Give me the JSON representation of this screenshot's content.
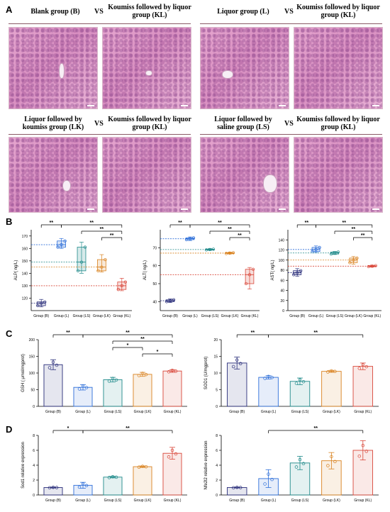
{
  "panels": {
    "a": "A",
    "b": "B",
    "c": "C",
    "d": "D"
  },
  "histology": {
    "vs": "VS",
    "rows": [
      [
        "Blank group (B)",
        "Koumiss followed by liquor group (KL)",
        "Liquor group (L)",
        "Koumiss followed by liquor group (KL)"
      ],
      [
        "Liquor followed by koumiss group (LK)",
        "Koumiss followed by liquor group (KL)",
        "Liquor followed by saline group (LS)",
        "Koumiss followed by liquor group (KL)"
      ]
    ]
  },
  "group_colors": [
    "#2a2e7a",
    "#2e6fd9",
    "#1f8a8a",
    "#d9821f",
    "#d9473a"
  ],
  "chart_data": [
    {
      "id": "alp",
      "type": "box",
      "ylabel": "ALP( ng/L)",
      "categories": [
        "Group (B)",
        "Group (L)",
        "Group (LS)",
        "Group (LK)",
        "Group (KL)"
      ],
      "ylim": [
        110,
        175
      ],
      "ticks": [
        120,
        130,
        140,
        150,
        160,
        170
      ],
      "boxes": [
        [
          113,
          114,
          116,
          117,
          119
        ],
        [
          160,
          161,
          163,
          166,
          168
        ],
        [
          140,
          142,
          149,
          161,
          165
        ],
        [
          141,
          142,
          145,
          151,
          155
        ],
        [
          126,
          127,
          130,
          133,
          136
        ]
      ],
      "significance": [
        "**",
        "**",
        "**",
        "**"
      ]
    },
    {
      "id": "alt",
      "type": "box",
      "ylabel": "ALT( ng/L)",
      "categories": [
        "Group (B)",
        "Group (L)",
        "Group (LS)",
        "Group (LK)",
        "Group (KL)"
      ],
      "ylim": [
        35,
        80
      ],
      "ticks": [
        40,
        50,
        60,
        70
      ],
      "boxes": [
        [
          39.5,
          40,
          40.5,
          41,
          41.5
        ],
        [
          74,
          74.5,
          75,
          75.5,
          76
        ],
        [
          68.5,
          68.8,
          69,
          69.2,
          69.5
        ],
        [
          66.5,
          66.8,
          67,
          67.2,
          67.5
        ],
        [
          47,
          50,
          55,
          58,
          59
        ]
      ],
      "significance": [
        "**",
        "**",
        "**",
        "**"
      ]
    },
    {
      "id": "ast",
      "type": "box",
      "ylabel": "AST( ng/L)",
      "categories": [
        "Group (B)",
        "Group (L)",
        "Group (LS)",
        "Group (LK)",
        "Group (KL)"
      ],
      "ylim": [
        0,
        160
      ],
      "ticks": [
        0,
        20,
        40,
        60,
        80,
        100,
        120,
        140
      ],
      "boxes": [
        [
          68,
          71,
          75,
          79,
          83
        ],
        [
          115,
          117,
          121,
          125,
          128
        ],
        [
          111,
          112,
          114,
          116,
          117
        ],
        [
          92,
          95,
          100,
          104,
          107
        ],
        [
          86,
          87,
          88,
          89,
          90
        ]
      ],
      "significance": [
        "**",
        "**",
        "**",
        "**"
      ]
    },
    {
      "id": "gsh",
      "type": "bar",
      "ylabel": "GSH ( μmol/mgprot)",
      "categories": [
        "Group (B)",
        "Group (L)",
        "Group (LS)",
        "Group (LK)",
        "Group (KL)"
      ],
      "ylim": [
        0,
        200
      ],
      "ticks": [
        0,
        50,
        100,
        150,
        200
      ],
      "values": [
        125,
        57,
        80,
        96,
        106
      ],
      "errors": [
        15,
        8,
        7,
        6,
        4
      ],
      "significance": [
        "**",
        "**",
        "*",
        "**",
        "*"
      ]
    },
    {
      "id": "sod",
      "type": "bar",
      "ylabel": "SOD1 (U/mgprot)",
      "categories": [
        "Group (B)",
        "Group (L)",
        "Group (LS)",
        "Group (LK)",
        "Group (KL)"
      ],
      "ylim": [
        0,
        20
      ],
      "ticks": [
        0,
        5,
        10,
        15,
        20
      ],
      "values": [
        13,
        8.7,
        7.5,
        10.5,
        12
      ],
      "errors": [
        1.8,
        0.5,
        1,
        0.3,
        1
      ],
      "significance": [
        "**",
        "**"
      ]
    },
    {
      "id": "sod1",
      "type": "bar",
      "ylabel": "Sod1 relative expression",
      "categories": [
        "Group (B)",
        "Group (L)",
        "Group (LS)",
        "Group (LK)",
        "Group (KL)"
      ],
      "ylim": [
        0,
        8
      ],
      "ticks": [
        0,
        2,
        4,
        6,
        8
      ],
      "values": [
        1,
        1.3,
        2.4,
        3.8,
        5.6
      ],
      "errors": [
        0.05,
        0.4,
        0.1,
        0.1,
        0.8
      ],
      "significance": [
        "*",
        "**"
      ]
    },
    {
      "id": "nfe2l2",
      "type": "bar",
      "ylabel": "Nfe2l2 relative expression",
      "categories": [
        "Group (B)",
        "Group (L)",
        "Group (LS)",
        "Group (LK)",
        "Group (KL)"
      ],
      "ylim": [
        0,
        8
      ],
      "ticks": [
        0,
        2,
        4,
        6,
        8
      ],
      "values": [
        1,
        2.2,
        4.3,
        4.6,
        6
      ],
      "errors": [
        0.05,
        1.2,
        0.9,
        1.1,
        1.3
      ],
      "significance": [
        "**"
      ]
    }
  ]
}
